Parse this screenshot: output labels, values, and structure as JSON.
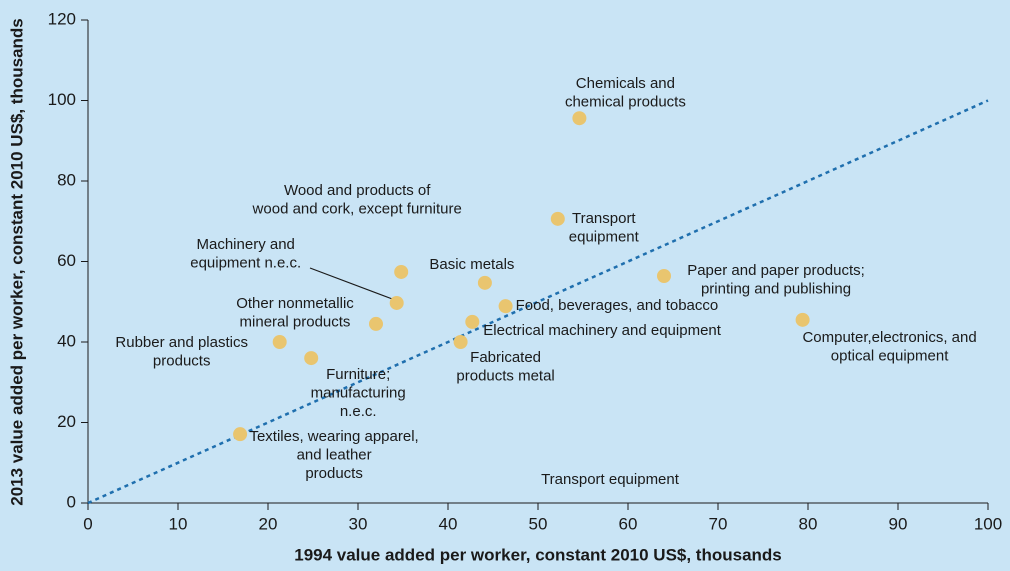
{
  "chart_data": {
    "type": "scatter",
    "x_label": "1994 value added per worker, constant 2010 US$, thousands",
    "y_label": "2013 value added per worker, constant 2010 US$, thousands",
    "xlim": [
      0,
      100
    ],
    "ylim": [
      0,
      120
    ],
    "xticks": [
      0,
      10,
      20,
      30,
      40,
      50,
      60,
      70,
      80,
      90,
      100
    ],
    "yticks": [
      0,
      20,
      40,
      60,
      80,
      100,
      120
    ],
    "color": "#e9c56f",
    "x": [
      54.6,
      52.2,
      64,
      79.4,
      34.8,
      34.3,
      44.1,
      46.4,
      42.7,
      41.4,
      32,
      21.3,
      24.8,
      16.9
    ],
    "values": [
      95.6,
      70.6,
      56.4,
      45.5,
      57.4,
      49.7,
      54.7,
      48.9,
      45,
      40,
      44.5,
      40,
      36,
      17.1
    ],
    "labels": [
      [
        "Chemicals and",
        "chemical products"
      ],
      [
        "Transport",
        "equipment"
      ],
      [
        "Paper and paper products;",
        "printing and publishing"
      ],
      [
        "Computer,electronics, and",
        "optical equipment"
      ],
      [
        "Wood and products of",
        "wood and cork, except furniture"
      ],
      [
        "Machinery and",
        "equipment n.e.c."
      ],
      [
        "Basic metals"
      ],
      [
        "Food, beverages, and tobacco"
      ],
      [
        "Electrical machinery and equipment"
      ],
      [
        "Fabricated",
        "products metal"
      ],
      [
        "Other nonmetallic",
        "mineral products"
      ],
      [
        "Rubber and plastics",
        "products"
      ],
      [
        "Furniture;",
        "manufacturing",
        "n.e.c."
      ],
      [
        "Textiles, wearing apparel,",
        "and leather",
        "products"
      ]
    ],
    "annotation": "Transport equipment",
    "reference_line": {
      "x": [
        0,
        100
      ],
      "y": [
        0,
        100
      ],
      "color": "#1f6fae"
    }
  }
}
